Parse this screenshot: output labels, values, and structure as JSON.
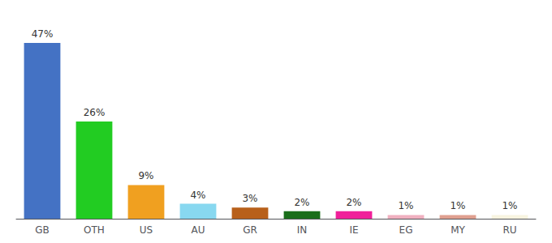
{
  "chart_data": {
    "type": "bar",
    "categories": [
      "GB",
      "OTH",
      "US",
      "AU",
      "GR",
      "IN",
      "IE",
      "EG",
      "MY",
      "RU"
    ],
    "values": [
      47,
      26,
      9,
      4,
      3,
      2,
      2,
      1,
      1,
      1
    ],
    "value_labels": [
      "47%",
      "26%",
      "9%",
      "4%",
      "3%",
      "2%",
      "2%",
      "1%",
      "1%",
      "1%"
    ],
    "colors": [
      "#4472c4",
      "#22cc22",
      "#f0a020",
      "#88d8f0",
      "#b8601a",
      "#1a6e1a",
      "#f0209a",
      "#f0b0c0",
      "#e0a090",
      "#f8f4e0"
    ],
    "ylim": [
      0,
      52
    ],
    "data_labels": true,
    "tick_labels": "x",
    "grid": false
  }
}
